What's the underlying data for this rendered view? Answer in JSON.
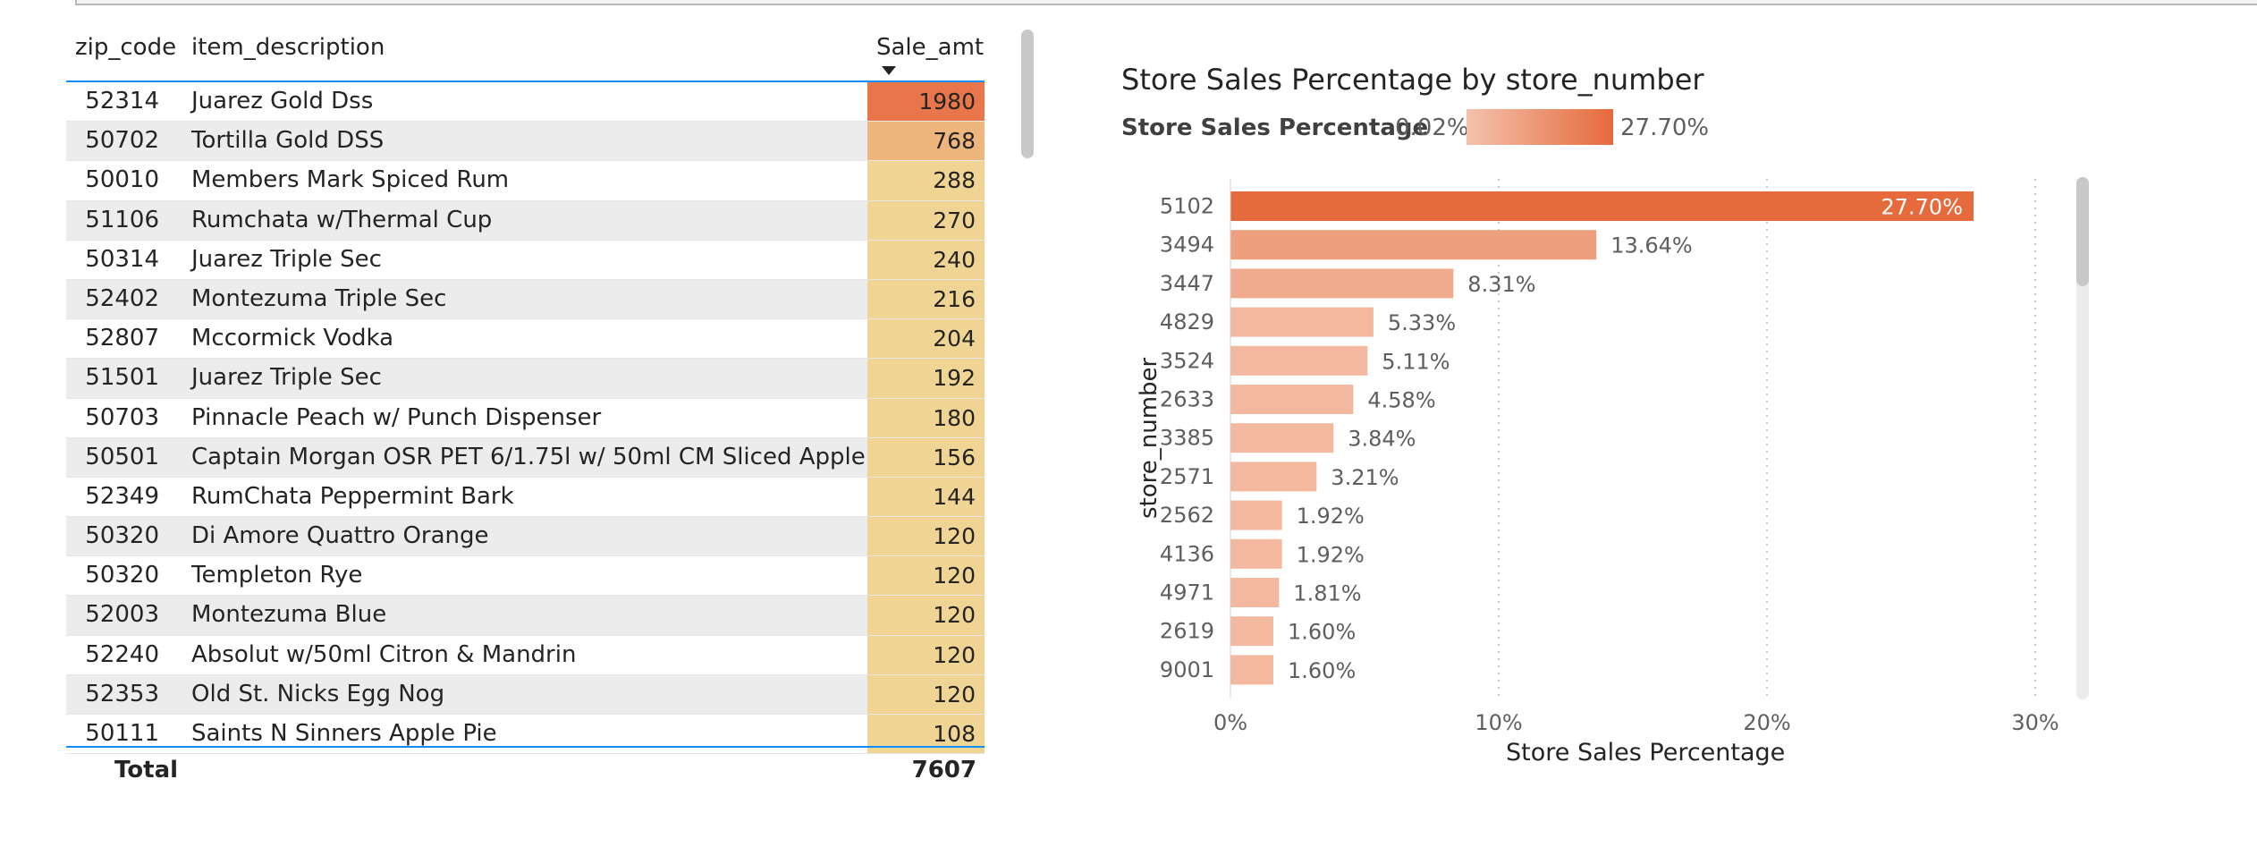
{
  "table": {
    "headers": {
      "zip": "zip_code",
      "desc": "item_description",
      "sale": "Sale_amt"
    },
    "rows": [
      {
        "zip": "52314",
        "desc": "Juarez Gold Dss",
        "sale": "1980",
        "color": "#e8764a"
      },
      {
        "zip": "50702",
        "desc": "Tortilla Gold DSS",
        "sale": "768",
        "color": "#eeb57c"
      },
      {
        "zip": "50010",
        "desc": "Members Mark Spiced Rum",
        "sale": "288",
        "color": "#f0d494"
      },
      {
        "zip": "51106",
        "desc": "Rumchata w/Thermal Cup",
        "sale": "270",
        "color": "#f0d494"
      },
      {
        "zip": "50314",
        "desc": "Juarez Triple Sec",
        "sale": "240",
        "color": "#f0d494"
      },
      {
        "zip": "52402",
        "desc": "Montezuma Triple Sec",
        "sale": "216",
        "color": "#f0d494"
      },
      {
        "zip": "52807",
        "desc": "Mccormick Vodka",
        "sale": "204",
        "color": "#f0d494"
      },
      {
        "zip": "51501",
        "desc": "Juarez Triple Sec",
        "sale": "192",
        "color": "#f0d494"
      },
      {
        "zip": "50703",
        "desc": "Pinnacle Peach w/ Punch Dispenser",
        "sale": "180",
        "color": "#f0d494"
      },
      {
        "zip": "50501",
        "desc": "Captain Morgan OSR PET 6/1.75l w/ 50ml CM Sliced Apple",
        "sale": "156",
        "color": "#f0d494"
      },
      {
        "zip": "52349",
        "desc": "RumChata Peppermint Bark",
        "sale": "144",
        "color": "#f0d494"
      },
      {
        "zip": "50320",
        "desc": "Di Amore Quattro Orange",
        "sale": "120",
        "color": "#f0d494"
      },
      {
        "zip": "50320",
        "desc": "Templeton Rye",
        "sale": "120",
        "color": "#f0d494"
      },
      {
        "zip": "52003",
        "desc": "Montezuma Blue",
        "sale": "120",
        "color": "#f0d494"
      },
      {
        "zip": "52240",
        "desc": "Absolut w/50ml Citron & Mandrin",
        "sale": "120",
        "color": "#f0d494"
      },
      {
        "zip": "52353",
        "desc": "Old St. Nicks Egg Nog",
        "sale": "120",
        "color": "#f0d494"
      },
      {
        "zip": "50111",
        "desc": "Saints N Sinners Apple Pie",
        "sale": "108",
        "color": "#f0d494"
      }
    ],
    "total_label": "Total",
    "total_value": "7607"
  },
  "chart_data": {
    "type": "bar",
    "orientation": "horizontal",
    "title": "Store Sales Percentage by store_number",
    "xlabel": "Store Sales Percentage",
    "ylabel": "store_number",
    "legend": {
      "label": "Store Sales Percentage",
      "min": "0.02%",
      "max": "27.70%",
      "min_color": "#f3c2ac",
      "max_color": "#e56a3c"
    },
    "categories": [
      "5102",
      "3494",
      "3447",
      "4829",
      "3524",
      "2633",
      "3385",
      "2571",
      "2562",
      "4136",
      "4971",
      "2619",
      "9001"
    ],
    "values": [
      27.7,
      13.64,
      8.31,
      5.33,
      5.11,
      4.58,
      3.84,
      3.21,
      1.92,
      1.92,
      1.81,
      1.6,
      1.6
    ],
    "labels": [
      "27.70%",
      "13.64%",
      "8.31%",
      "5.33%",
      "5.11%",
      "4.58%",
      "3.84%",
      "3.21%",
      "1.92%",
      "1.92%",
      "1.81%",
      "1.60%",
      "1.60%"
    ],
    "xlim": [
      0,
      30
    ],
    "xticks": [
      0,
      10,
      20,
      30
    ],
    "xtick_labels": [
      "0%",
      "10%",
      "20%",
      "30%"
    ],
    "colors": {
      "max": "#e56a3c",
      "mid": "#ee9f7d",
      "low": "#f3b8a0",
      "label_inside": "#ffffff",
      "label": "#605e5c"
    }
  }
}
